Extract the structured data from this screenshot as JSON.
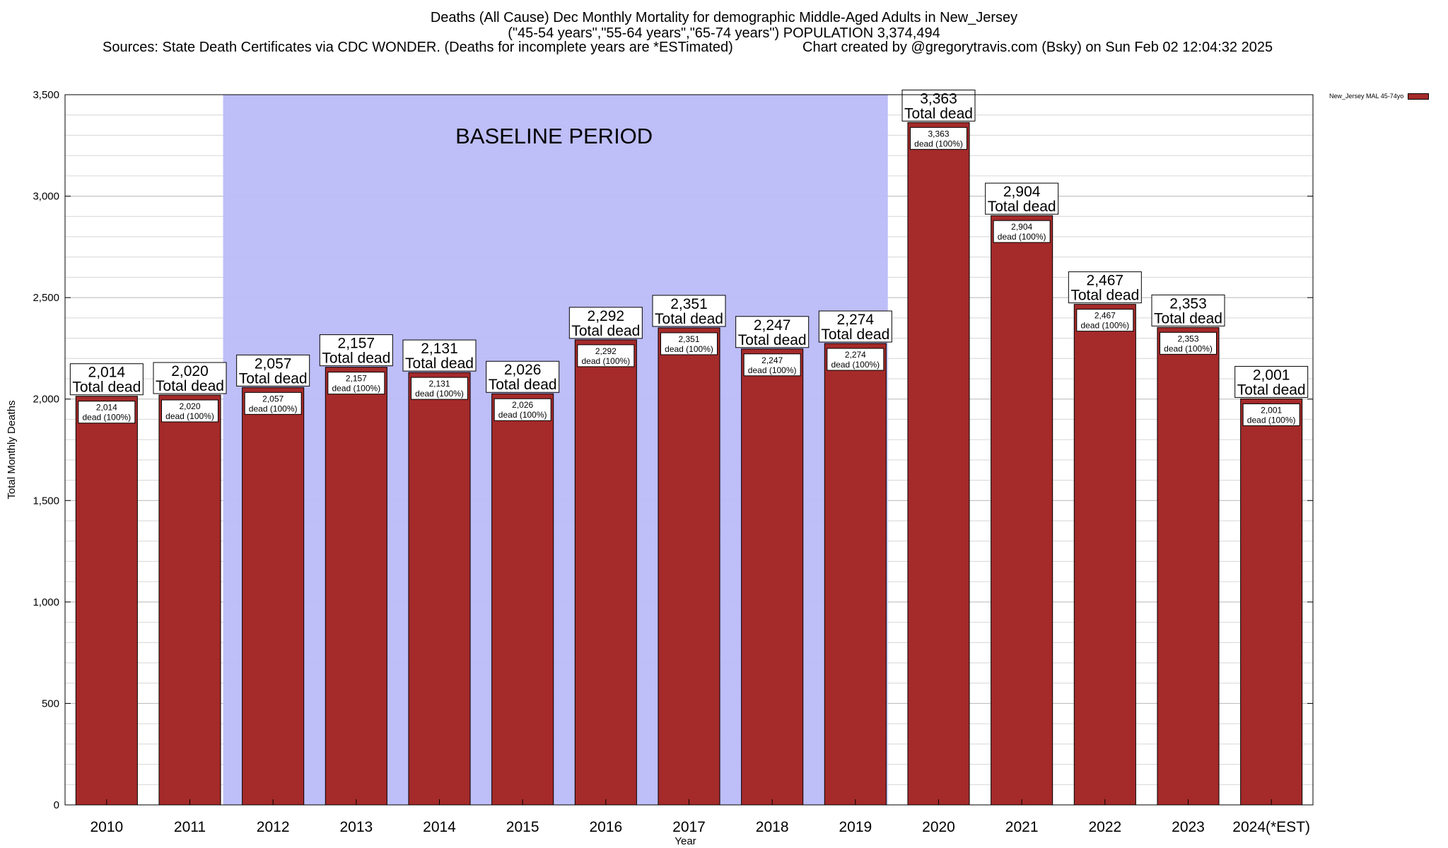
{
  "chart_data": {
    "type": "bar",
    "title": "Deaths (All Cause) Dec Monthly Mortality for demographic Middle-Aged Adults in New_Jersey",
    "subtitle": "(\"45-54 years\",\"55-64 years\",\"65-74 years\") POPULATION 3,374,494",
    "sources": "Sources: State Death Certificates via CDC WONDER. (Deaths for incomplete years are *ESTimated)",
    "credit": "Chart created by @gregorytravis.com (Bsky) on Sun Feb 02 12:04:32 2025",
    "xlabel": "Year",
    "ylabel": "Total Monthly Deaths",
    "ylim": [
      0,
      3500
    ],
    "yticks": [
      0,
      500,
      1000,
      1500,
      2000,
      2500,
      3000,
      3500
    ],
    "ytick_labels": [
      "0",
      "500",
      "1,000",
      "1,500",
      "2,000",
      "2,500",
      "3,000",
      "3,500"
    ],
    "categories": [
      "2010",
      "2011",
      "2012",
      "2013",
      "2014",
      "2015",
      "2016",
      "2017",
      "2018",
      "2019",
      "2020",
      "2021",
      "2022",
      "2023",
      "2024(*EST)"
    ],
    "values": [
      2014,
      2020,
      2057,
      2157,
      2131,
      2026,
      2292,
      2351,
      2247,
      2274,
      3363,
      2904,
      2467,
      2353,
      2001
    ],
    "value_labels": [
      "2,014",
      "2,020",
      "2,057",
      "2,157",
      "2,131",
      "2,026",
      "2,292",
      "2,351",
      "2,247",
      "2,274",
      "3,363",
      "2,904",
      "2,467",
      "2,353",
      "2,001"
    ],
    "top_label_suffix": "Total dead",
    "inner_label_suffix": "dead (100%)",
    "series": [
      {
        "name": "New_Jersey MAL 45-74yo",
        "values": [
          2014,
          2020,
          2057,
          2157,
          2131,
          2026,
          2292,
          2351,
          2247,
          2274,
          3363,
          2904,
          2467,
          2353,
          2001
        ]
      }
    ],
    "baseline": {
      "label": "BASELINE PERIOD",
      "from": "2012",
      "to": "2019",
      "color": "#bbbbf8"
    },
    "bar_color": "#a52a2a",
    "grid": true,
    "legend_position": "top-right"
  }
}
